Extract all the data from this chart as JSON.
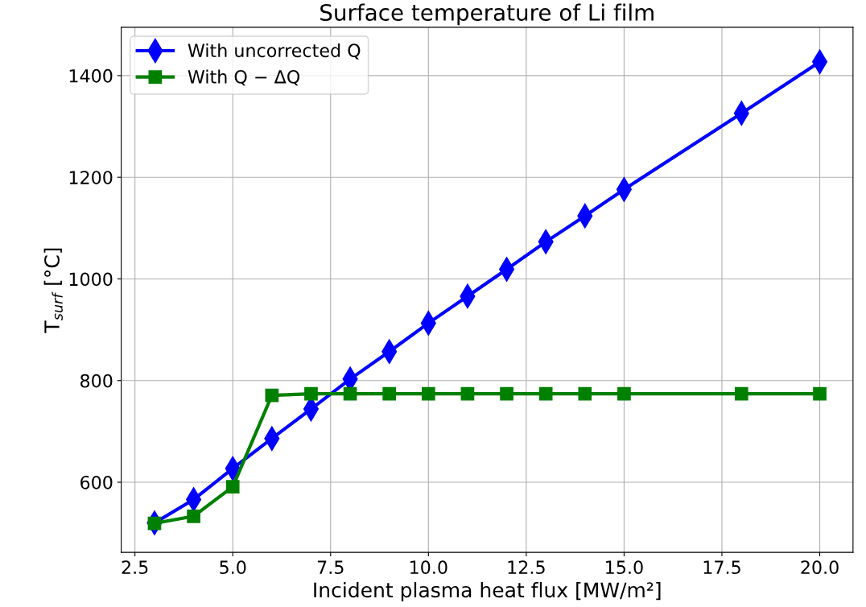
{
  "chart_data": {
    "type": "line",
    "title": "Surface temperature of Li film",
    "xlabel": "Incident plasma heat flux [MW/m²]",
    "ylabel": "T$_{surf}$ [°C]",
    "series": [
      {
        "name": "With uncorrected Q",
        "color": "#0000ff",
        "marker": "diamond",
        "x": [
          3,
          4,
          5,
          6,
          7,
          8,
          9,
          10,
          11,
          12,
          13,
          14,
          15,
          18,
          20
        ],
        "values": [
          520,
          566,
          627,
          686,
          744,
          803,
          857,
          913,
          966,
          1019,
          1073,
          1124,
          1176,
          1326,
          1427
        ]
      },
      {
        "name": "With Q − ΔQ",
        "color": "#008000",
        "marker": "square",
        "x": [
          3,
          4,
          5,
          6,
          7,
          8,
          9,
          10,
          11,
          12,
          13,
          14,
          15,
          18,
          20
        ],
        "values": [
          519,
          533,
          591,
          771,
          774,
          774,
          774,
          774,
          774,
          774,
          774,
          774,
          774,
          774,
          774
        ]
      }
    ],
    "xlim": [
      2.15,
      20.85
    ],
    "ylim": [
      462,
      1495
    ],
    "xticks": [
      {
        "value": 2.5,
        "label": "2.5"
      },
      {
        "value": 5,
        "label": "5.0"
      },
      {
        "value": 7.5,
        "label": "7.5"
      },
      {
        "value": 10,
        "label": "10.0"
      },
      {
        "value": 12.5,
        "label": "12.5"
      },
      {
        "value": 15,
        "label": "15.0"
      },
      {
        "value": 17.5,
        "label": "17.5"
      },
      {
        "value": 20,
        "label": "20.0"
      }
    ],
    "yticks": [
      600,
      800,
      1000,
      1200,
      1400
    ],
    "grid": true,
    "legend": "top left",
    "line_style": "solid"
  }
}
